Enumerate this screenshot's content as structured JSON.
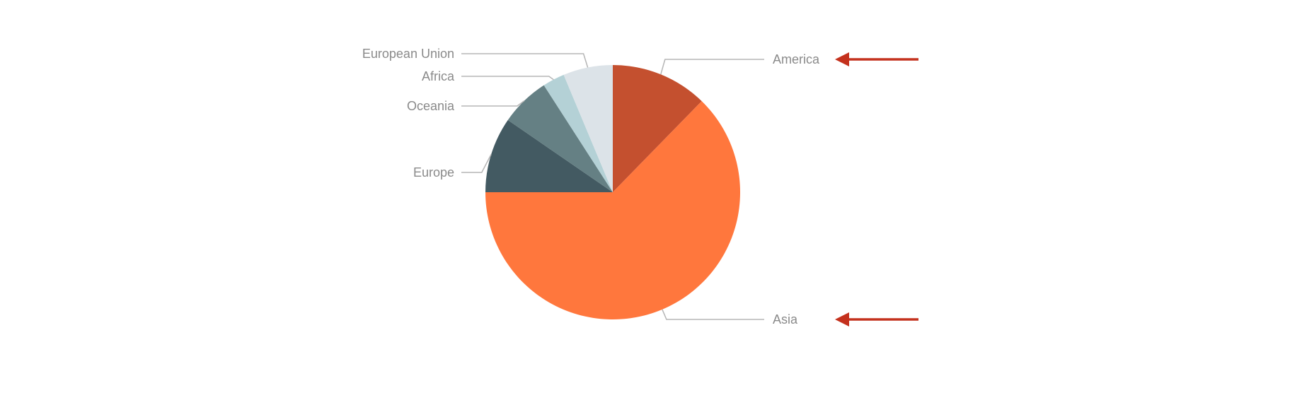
{
  "chart_data": {
    "type": "pie",
    "title": "",
    "start_angle_deg": 0,
    "direction": "clockwise",
    "slices": [
      {
        "label": "America",
        "value": 12.3,
        "color": "#c4502f"
      },
      {
        "label": "Asia",
        "value": 62.7,
        "color": "#ff773d"
      },
      {
        "label": "Europe",
        "value": 9.6,
        "color": "#435a62"
      },
      {
        "label": "Oceania",
        "value": 6.3,
        "color": "#658084"
      },
      {
        "label": "Africa",
        "value": 2.8,
        "color": "#b4d1d6"
      },
      {
        "label": "European Union",
        "value": 6.3,
        "color": "#dce3e8"
      }
    ],
    "annotations": [
      {
        "type": "arrow",
        "target": "America",
        "color": "#c4311d"
      },
      {
        "type": "arrow",
        "target": "Asia",
        "color": "#c4311d"
      }
    ]
  },
  "colors": {
    "label_text": "#8a8a8a",
    "leader_line": "#b5b5b5"
  }
}
